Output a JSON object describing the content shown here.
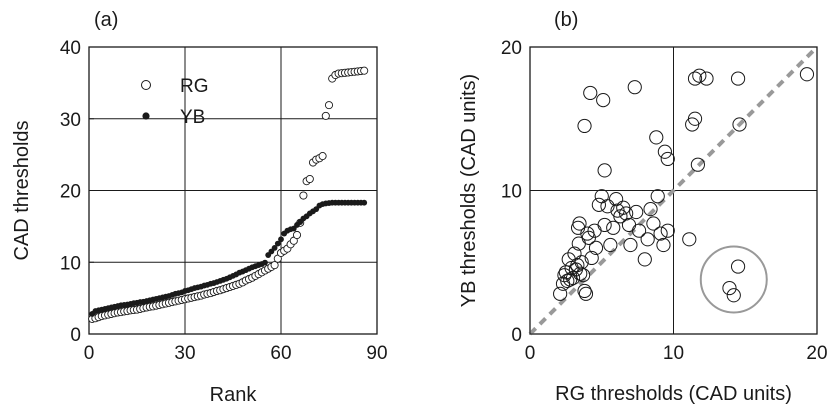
{
  "chart_data": [
    {
      "type": "scatter",
      "panel_label": "(a)",
      "xlabel": "Rank",
      "ylabel": "CAD thresholds",
      "xlim": [
        0,
        90
      ],
      "ylim": [
        0,
        40
      ],
      "xticks": [
        0,
        30,
        60,
        90
      ],
      "yticks": [
        0,
        10,
        20,
        30,
        40
      ],
      "grid": true,
      "legend_position": "top-left",
      "series": [
        {
          "name": "RG",
          "marker": "open-circle",
          "x": [
            1,
            2,
            3,
            4,
            5,
            6,
            7,
            8,
            9,
            10,
            11,
            12,
            13,
            14,
            15,
            16,
            17,
            18,
            19,
            20,
            21,
            22,
            23,
            24,
            25,
            26,
            27,
            28,
            29,
            30,
            31,
            32,
            33,
            34,
            35,
            36,
            37,
            38,
            39,
            40,
            41,
            42,
            43,
            44,
            45,
            46,
            47,
            48,
            49,
            50,
            51,
            52,
            53,
            54,
            55,
            56,
            57,
            58,
            59,
            60,
            61,
            62,
            63,
            64,
            65,
            66,
            67,
            68,
            69,
            70,
            71,
            72,
            73,
            74,
            75,
            76,
            77,
            78,
            79,
            80,
            81,
            82,
            83,
            84,
            85,
            86
          ],
          "values": [
            2.1,
            2.2,
            2.35,
            2.5,
            2.6,
            2.7,
            2.8,
            2.9,
            3.0,
            3.05,
            3.15,
            3.2,
            3.3,
            3.35,
            3.4,
            3.5,
            3.6,
            3.7,
            3.8,
            3.85,
            3.95,
            4.05,
            4.15,
            4.25,
            4.35,
            4.45,
            4.55,
            4.65,
            4.75,
            4.85,
            4.95,
            5.05,
            5.15,
            5.25,
            5.35,
            5.5,
            5.6,
            5.7,
            5.85,
            6.0,
            6.1,
            6.25,
            6.4,
            6.55,
            6.7,
            6.85,
            7.0,
            7.2,
            7.45,
            7.65,
            7.85,
            8.1,
            8.35,
            8.6,
            8.85,
            9.1,
            9.35,
            9.6,
            10.5,
            11.3,
            11.6,
            11.9,
            12.5,
            13.0,
            13.8,
            15.5,
            19.3,
            21.3,
            21.6,
            23.9,
            24.3,
            24.5,
            24.8,
            30.4,
            31.9,
            35.6,
            36.1,
            36.3,
            36.35,
            36.4,
            36.45,
            36.5,
            36.55,
            36.6,
            36.65,
            36.7
          ]
        },
        {
          "name": "YB",
          "marker": "filled-circle",
          "x": [
            1,
            2,
            3,
            4,
            5,
            6,
            7,
            8,
            9,
            10,
            11,
            12,
            13,
            14,
            15,
            16,
            17,
            18,
            19,
            20,
            21,
            22,
            23,
            24,
            25,
            26,
            27,
            28,
            29,
            30,
            31,
            32,
            33,
            34,
            35,
            36,
            37,
            38,
            39,
            40,
            41,
            42,
            43,
            44,
            45,
            46,
            47,
            48,
            49,
            50,
            51,
            52,
            53,
            54,
            55,
            56,
            57,
            58,
            59,
            60,
            61,
            62,
            63,
            64,
            65,
            66,
            67,
            68,
            69,
            70,
            71,
            72,
            73,
            74,
            75,
            76,
            77,
            78,
            79,
            80,
            81,
            82,
            83,
            84,
            85,
            86
          ],
          "values": [
            2.8,
            3.2,
            3.3,
            3.4,
            3.5,
            3.6,
            3.7,
            3.8,
            3.9,
            4.0,
            4.05,
            4.1,
            4.2,
            4.3,
            4.35,
            4.45,
            4.5,
            4.6,
            4.7,
            4.8,
            4.9,
            5.0,
            5.1,
            5.2,
            5.3,
            5.45,
            5.6,
            5.7,
            5.8,
            6.0,
            6.1,
            6.25,
            6.4,
            6.5,
            6.6,
            6.75,
            6.85,
            7.0,
            7.1,
            7.25,
            7.4,
            7.55,
            7.7,
            7.9,
            8.1,
            8.3,
            8.55,
            8.7,
            8.9,
            9.1,
            9.3,
            9.45,
            9.6,
            9.75,
            9.95,
            11.0,
            11.5,
            12.0,
            12.6,
            13.2,
            14.0,
            14.4,
            14.6,
            14.7,
            15.2,
            15.6,
            16.1,
            16.4,
            16.8,
            17.1,
            17.4,
            17.9,
            18.1,
            18.2,
            18.25,
            18.3,
            18.3,
            18.3,
            18.3,
            18.3,
            18.3,
            18.3,
            18.3,
            18.3,
            18.3,
            18.3
          ]
        }
      ]
    },
    {
      "type": "scatter",
      "panel_label": "(b)",
      "xlabel": "RG thresholds (CAD units)",
      "ylabel": "YB thresholds (CAD units)",
      "xlim": [
        0,
        20
      ],
      "ylim": [
        0,
        20
      ],
      "xticks": [
        0,
        10,
        20
      ],
      "yticks": [
        0,
        10,
        20
      ],
      "grid": true,
      "reference_line": {
        "type": "identity",
        "style": "dashed",
        "color": "#999999"
      },
      "highlight_circle": {
        "cx": 14.2,
        "cy": 3.8,
        "r": 2.3,
        "color": "#999999"
      },
      "series": [
        {
          "marker": "open-circle",
          "points": [
            [
              2.1,
              2.8
            ],
            [
              2.3,
              3.5
            ],
            [
              2.4,
              4.1
            ],
            [
              2.5,
              4.3
            ],
            [
              2.6,
              3.7
            ],
            [
              2.7,
              5.2
            ],
            [
              2.8,
              3.8
            ],
            [
              2.9,
              4.6
            ],
            [
              3.0,
              3.9
            ],
            [
              3.1,
              5.6
            ],
            [
              3.2,
              4.5
            ],
            [
              3.3,
              4.8
            ],
            [
              3.35,
              7.4
            ],
            [
              3.4,
              6.3
            ],
            [
              3.45,
              7.7
            ],
            [
              3.5,
              4.2
            ],
            [
              3.6,
              5.0
            ],
            [
              3.7,
              4.1
            ],
            [
              3.8,
              3.0
            ],
            [
              3.9,
              2.8
            ],
            [
              4.0,
              7.0
            ],
            [
              4.1,
              6.7
            ],
            [
              4.3,
              5.3
            ],
            [
              4.5,
              7.2
            ],
            [
              4.6,
              6.0
            ],
            [
              4.8,
              9.0
            ],
            [
              5.0,
              9.6
            ],
            [
              5.2,
              7.6
            ],
            [
              5.4,
              8.9
            ],
            [
              5.6,
              6.2
            ],
            [
              5.8,
              7.4
            ],
            [
              6.0,
              9.4
            ],
            [
              6.1,
              8.6
            ],
            [
              6.3,
              8.2
            ],
            [
              6.5,
              8.8
            ],
            [
              6.7,
              8.4
            ],
            [
              6.9,
              7.6
            ],
            [
              7.0,
              6.2
            ],
            [
              7.4,
              8.5
            ],
            [
              7.6,
              7.2
            ],
            [
              8.0,
              5.2
            ],
            [
              8.2,
              6.6
            ],
            [
              8.4,
              8.7
            ],
            [
              8.6,
              7.7
            ],
            [
              8.9,
              9.6
            ],
            [
              9.1,
              7.0
            ],
            [
              9.3,
              6.2
            ],
            [
              9.6,
              7.2
            ],
            [
              3.8,
              14.5
            ],
            [
              4.2,
              16.8
            ],
            [
              5.1,
              16.3
            ],
            [
              5.2,
              11.4
            ],
            [
              7.3,
              17.2
            ],
            [
              8.8,
              13.7
            ],
            [
              9.4,
              12.7
            ],
            [
              9.6,
              12.2
            ],
            [
              11.1,
              6.6
            ],
            [
              11.3,
              14.6
            ],
            [
              11.5,
              15.0
            ],
            [
              11.7,
              11.8
            ],
            [
              11.5,
              17.8
            ],
            [
              11.8,
              18.0
            ],
            [
              12.3,
              17.8
            ],
            [
              14.5,
              17.8
            ],
            [
              14.6,
              14.6
            ],
            [
              19.3,
              18.1
            ],
            [
              13.9,
              3.2
            ],
            [
              14.2,
              2.7
            ],
            [
              14.5,
              4.7
            ]
          ]
        }
      ]
    }
  ]
}
